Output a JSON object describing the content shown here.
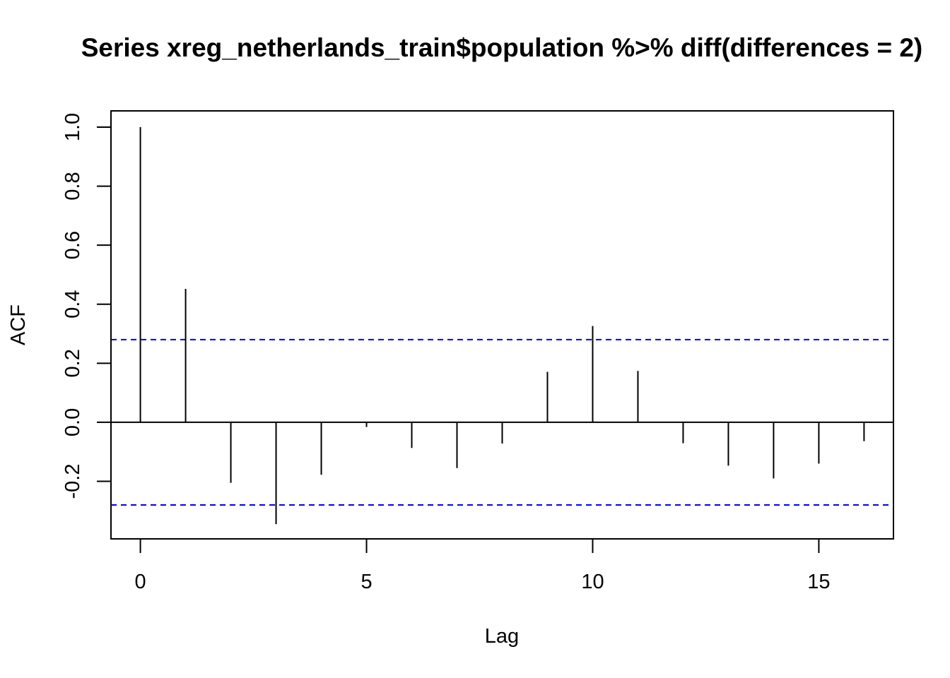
{
  "chart_data": {
    "type": "bar",
    "title": "Series  xreg_netherlands_train$population %>% diff(differences = 2)",
    "xlabel": "Lag",
    "ylabel": "ACF",
    "xlim": [
      -0.65,
      16.65
    ],
    "ylim": [
      -0.395,
      1.055
    ],
    "x_ticks": [
      0,
      5,
      10,
      15
    ],
    "y_ticks": [
      -0.2,
      0.0,
      0.2,
      0.4,
      0.6,
      0.8,
      1.0
    ],
    "y_tick_labels": [
      "-0.2",
      "0.0",
      "0.2",
      "0.4",
      "0.6",
      "0.8",
      "1.0"
    ],
    "x_tick_labels": [
      "0",
      "5",
      "10",
      "15"
    ],
    "grid": false,
    "series": [
      {
        "lags": [
          0,
          1,
          2,
          3,
          4,
          5,
          6,
          7,
          8,
          9,
          10,
          11,
          12,
          13,
          14,
          15,
          16
        ],
        "values": [
          1.0,
          0.452,
          -0.205,
          -0.345,
          -0.178,
          -0.016,
          -0.087,
          -0.155,
          -0.072,
          0.171,
          0.326,
          0.174,
          -0.071,
          -0.147,
          -0.19,
          -0.14,
          -0.064
        ],
        "color": "#000000"
      }
    ],
    "confidence_bounds": {
      "upper": 0.28,
      "lower": -0.28,
      "color": "#0000ee",
      "style": "dashed"
    },
    "zero_line": 0.0
  }
}
